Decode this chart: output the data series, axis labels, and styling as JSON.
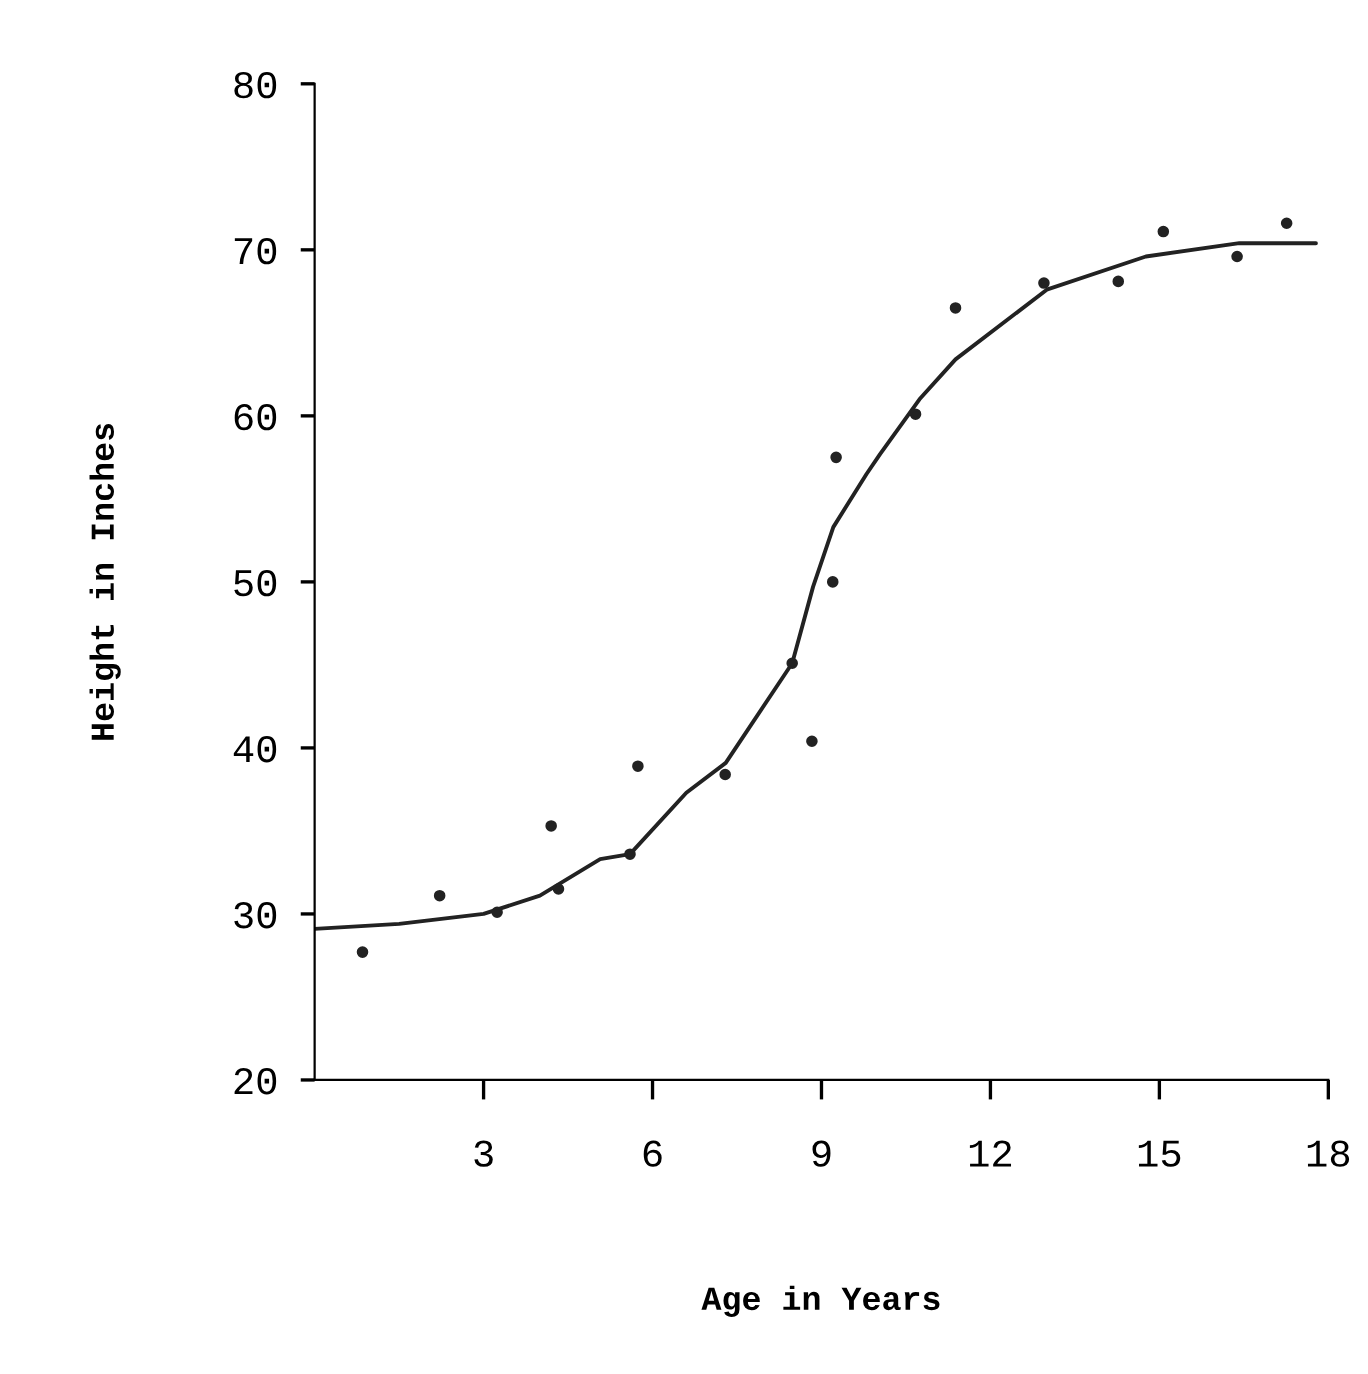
{
  "chart_data": {
    "type": "scatter",
    "xlabel": "Age in Years",
    "ylabel": "Height in Inches",
    "xlim": [
      0,
      18
    ],
    "xticks": [
      3,
      6,
      9,
      12,
      15,
      18
    ],
    "ylim": [
      20,
      80
    ],
    "yticks": [
      20,
      30,
      40,
      50,
      60,
      70,
      80
    ],
    "grid": false,
    "legend": false,
    "series": [
      {
        "marker": "circle",
        "color": "#222222",
        "x": [
          0.85,
          2.22,
          3.24,
          4.33,
          4.2,
          5.6,
          5.74,
          7.29,
          8.83,
          8.48,
          9.2,
          9.26,
          10.67,
          11.38,
          12.95,
          14.27,
          15.07,
          16.38,
          17.26
        ],
        "values": [
          27.7,
          31.1,
          30.1,
          31.5,
          35.3,
          33.6,
          38.9,
          38.4,
          40.4,
          45.1,
          50.0,
          57.5,
          60.1,
          66.5,
          68.0,
          68.1,
          71.1,
          69.6,
          71.6
        ]
      },
      {
        "type": "line",
        "color": "#222222",
        "line_style": "solid",
        "x": [
          0,
          1.5,
          3,
          4,
          5.07,
          5.6,
          6.6,
          7.3,
          8.48,
          8.85,
          9.21,
          9.8,
          10.04,
          10.74,
          11.38,
          13.0,
          14.76,
          16.42,
          17.78
        ],
        "values": [
          29.1,
          29.4,
          30.0,
          31.1,
          33.3,
          33.6,
          37.3,
          39.1,
          45.1,
          49.7,
          53.3,
          56.5,
          57.7,
          61.0,
          63.4,
          67.6,
          69.6,
          70.4,
          70.4
        ]
      }
    ]
  }
}
